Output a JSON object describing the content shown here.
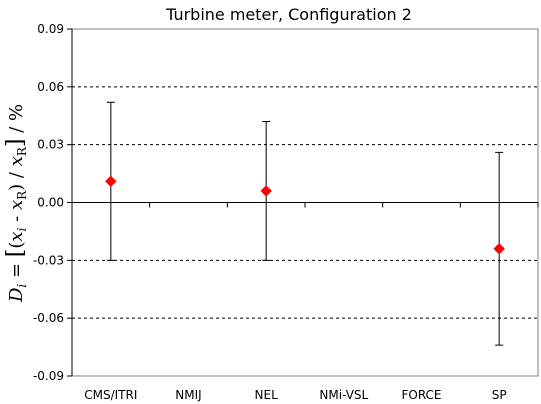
{
  "chart_data": {
    "type": "scatter",
    "title": "Turbine meter, Configuration 2",
    "ylabel": {
      "d": "D",
      "d_sub": "i",
      "eq": " = ",
      "lbr": "[",
      "lparen": "(",
      "x": "x",
      "x_sub": "i",
      "minus": " - ",
      "x_ref": "x",
      "x_ref_sub": "R",
      "rparen": ")",
      "div": " / ",
      "x_ref2": "x",
      "x_ref2_sub": "R",
      "rbr": "]",
      "unit": " / %"
    },
    "categories": [
      "CMS/ITRI",
      "NMIJ",
      "NEL",
      "NMi-VSL",
      "FORCE",
      "SP"
    ],
    "yticks": [
      "0.09",
      "0.06",
      "0.03",
      "0.00",
      "-0.03",
      "-0.06",
      "-0.09"
    ],
    "ytick_values": [
      0.09,
      0.06,
      0.03,
      0.0,
      -0.03,
      -0.06,
      -0.09
    ],
    "ylim": [
      -0.09,
      0.09
    ],
    "grid": "horizontal dashed at ±0.03, ±0.06",
    "series": [
      {
        "marker": "diamond",
        "color": "#ff0000",
        "points": [
          {
            "category": "CMS/ITRI",
            "y": 0.011,
            "ylow": -0.03,
            "yhigh": 0.052
          },
          {
            "category": "NEL",
            "y": 0.006,
            "ylow": -0.03,
            "yhigh": 0.042
          },
          {
            "category": "SP",
            "y": -0.024,
            "ylow": -0.074,
            "yhigh": 0.026
          }
        ]
      }
    ]
  }
}
